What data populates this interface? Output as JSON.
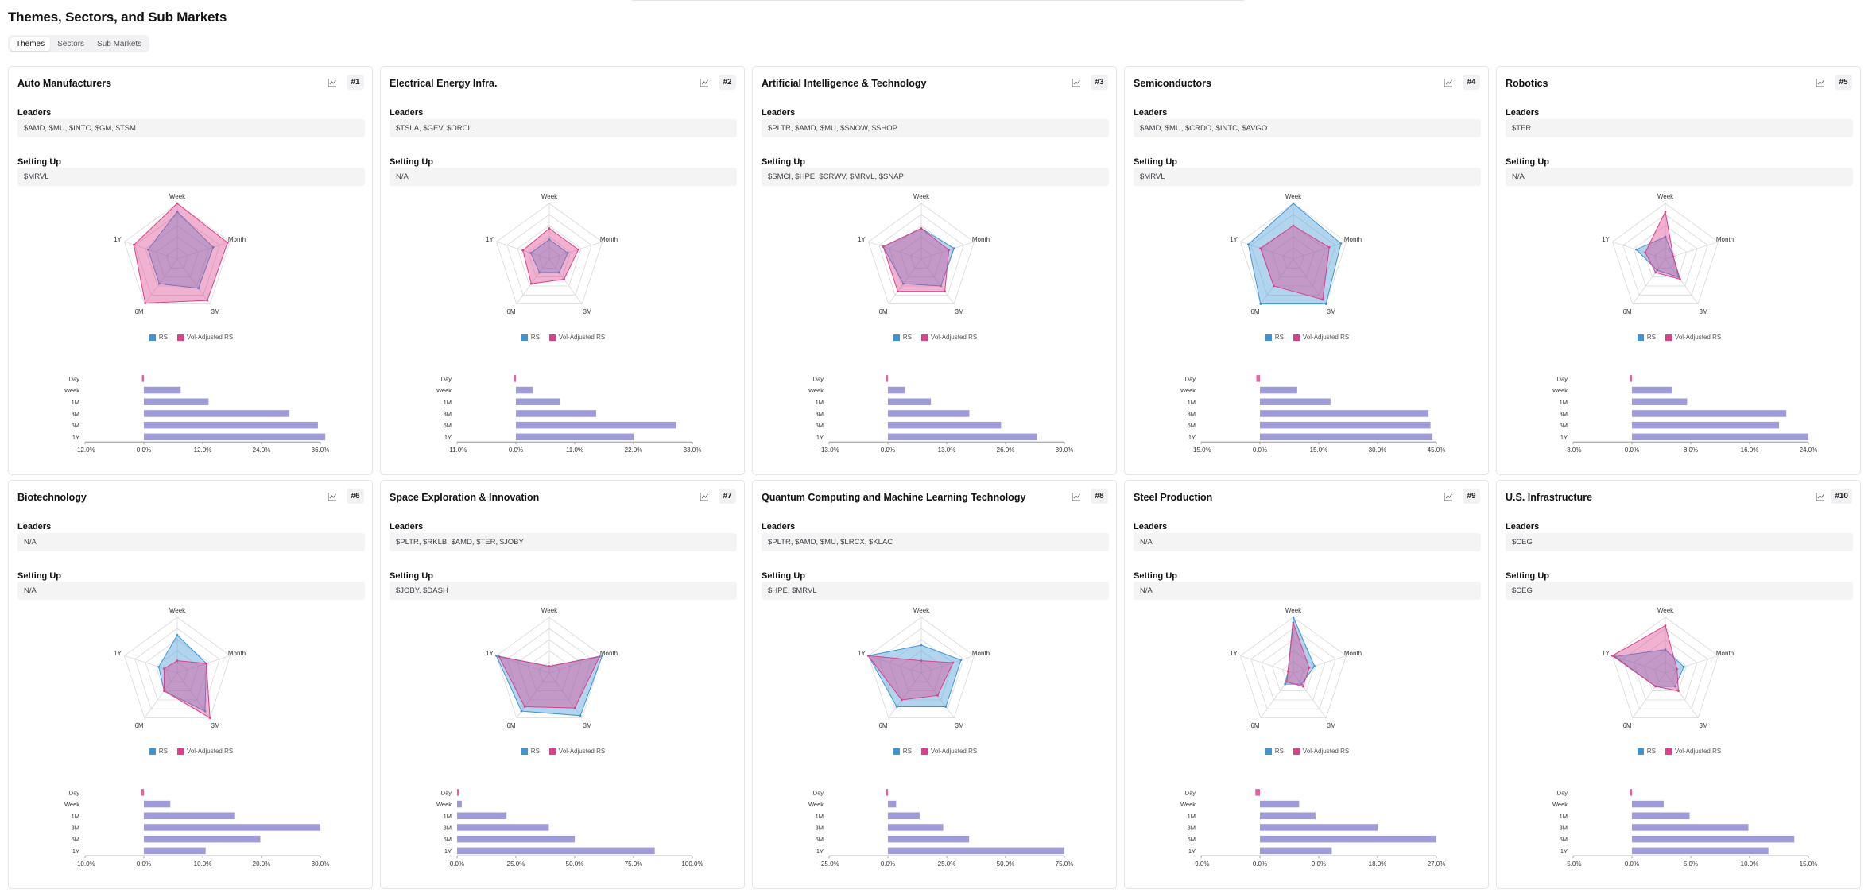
{
  "page": {
    "title": "Themes, Sectors, and Sub Markets"
  },
  "tabs": [
    {
      "label": "Themes",
      "active": true
    },
    {
      "label": "Sectors",
      "active": false
    },
    {
      "label": "Sub Markets",
      "active": false
    }
  ],
  "labels": {
    "leaders": "Leaders",
    "setting_up": "Setting Up"
  },
  "legend": {
    "rs": "RS",
    "vol_adjusted": "Vol-Adjusted RS"
  },
  "colors": {
    "rs": "#3e95d6",
    "vol": "#dd3f8b",
    "bar": "#9e9bd6",
    "day_bar": "#e8609f"
  },
  "chart_data": [
    {
      "type": "radar+bar",
      "title": "Auto Manufacturers",
      "rank": "#1",
      "leaders": "$AMD, $MU, $INTC, $GM, $TSM",
      "setting_up": "$MRVL",
      "radar_axes": [
        "Week",
        "Month",
        "3M",
        "6M",
        "1Y"
      ],
      "rs": [
        0.85,
        0.68,
        0.65,
        0.55,
        0.55
      ],
      "vol_adjusted_rs": [
        1.0,
        0.95,
        0.92,
        0.98,
        0.82
      ],
      "bar_categories": [
        "Day",
        "Week",
        "1M",
        "3M",
        "6M",
        "1Y"
      ],
      "bar_values": [
        -0.3,
        7.5,
        13.2,
        29.7,
        35.5,
        37.0
      ],
      "xticks": [
        -12,
        0,
        12,
        24,
        36
      ],
      "tick_labels": [
        "-12.0%",
        "0.0%",
        "12.0%",
        "24.0%",
        "36.0%"
      ]
    },
    {
      "type": "radar+bar",
      "title": "Electrical Energy Infra.",
      "rank": "#2",
      "leaders": "$TSLA, $GEV, $ORCL",
      "setting_up": "N/A",
      "radar_axes": [
        "Week",
        "Month",
        "3M",
        "6M",
        "1Y"
      ],
      "rs": [
        0.35,
        0.35,
        0.3,
        0.3,
        0.35
      ],
      "vol_adjusted_rs": [
        0.55,
        0.55,
        0.45,
        0.55,
        0.5
      ],
      "bar_categories": [
        "Day",
        "Week",
        "1M",
        "3M",
        "6M",
        "1Y"
      ],
      "bar_values": [
        -0.3,
        3.2,
        8.2,
        15.0,
        30.0,
        22.0
      ],
      "xticks": [
        -11,
        0,
        11,
        22,
        33
      ],
      "tick_labels": [
        "-11.0%",
        "0.0%",
        "11.0%",
        "22.0%",
        "33.0%"
      ]
    },
    {
      "type": "radar+bar",
      "title": "Artificial Intelligence & Technology",
      "rank": "#3",
      "leaders": "$PLTR, $AMD, $MU, $SNOW, $SHOP",
      "setting_up": "$SMCI, $HPE, $CRWV, $MRVL, $SNAP",
      "radar_axes": [
        "Week",
        "Month",
        "3M",
        "6M",
        "1Y"
      ],
      "rs": [
        0.55,
        0.62,
        0.6,
        0.55,
        0.72
      ],
      "vol_adjusted_rs": [
        0.55,
        0.52,
        0.72,
        0.72,
        0.72
      ],
      "bar_categories": [
        "Day",
        "Week",
        "1M",
        "3M",
        "6M",
        "1Y"
      ],
      "bar_values": [
        -0.4,
        3.8,
        9.5,
        18.0,
        25.0,
        33.0
      ],
      "xticks": [
        -13,
        0,
        13,
        26,
        39
      ],
      "tick_labels": [
        "-13.0%",
        "0.0%",
        "13.0%",
        "26.0%",
        "39.0%"
      ]
    },
    {
      "type": "radar+bar",
      "title": "Semiconductors",
      "rank": "#4",
      "leaders": "$AMD, $MU, $CRDO, $INTC, $AVGO",
      "setting_up": "$MRVL",
      "radar_axes": [
        "Week",
        "Month",
        "3M",
        "6M",
        "1Y"
      ],
      "rs": [
        1.0,
        0.9,
        1.0,
        1.0,
        0.85
      ],
      "vol_adjusted_rs": [
        0.6,
        0.68,
        0.9,
        0.6,
        0.62
      ],
      "bar_categories": [
        "Day",
        "Week",
        "1M",
        "3M",
        "6M",
        "1Y"
      ],
      "bar_values": [
        -0.9,
        9.5,
        18.0,
        43.0,
        43.5,
        44.0
      ],
      "xticks": [
        -15,
        0,
        15,
        30,
        45
      ],
      "tick_labels": [
        "-15.0%",
        "0.0%",
        "15.0%",
        "30.0%",
        "45.0%"
      ]
    },
    {
      "type": "radar+bar",
      "title": "Robotics",
      "rank": "#5",
      "leaders": "$TER",
      "setting_up": "N/A",
      "radar_axes": [
        "Week",
        "Month",
        "3M",
        "6M",
        "1Y"
      ],
      "rs": [
        0.4,
        0.15,
        0.4,
        0.25,
        0.55
      ],
      "vol_adjusted_rs": [
        0.85,
        0.15,
        0.45,
        0.3,
        0.38
      ],
      "bar_categories": [
        "Day",
        "Week",
        "1M",
        "3M",
        "6M",
        "1Y"
      ],
      "bar_values": [
        -0.05,
        5.5,
        7.5,
        21.0,
        20.0,
        24.0
      ],
      "xticks": [
        -8,
        0,
        8,
        16,
        24
      ],
      "tick_labels": [
        "-8.0%",
        "0.0%",
        "8.0%",
        "16.0%",
        "24.0%"
      ]
    },
    {
      "type": "radar+bar",
      "title": "Biotechnology",
      "rank": "#6",
      "leaders": "N/A",
      "setting_up": "N/A",
      "radar_axes": [
        "Week",
        "Month",
        "3M",
        "6M",
        "1Y"
      ],
      "rs": [
        0.68,
        0.55,
        0.85,
        0.4,
        0.35
      ],
      "vol_adjusted_rs": [
        0.22,
        0.55,
        1.0,
        0.4,
        0.25
      ],
      "bar_categories": [
        "Day",
        "Week",
        "1M",
        "3M",
        "6M",
        "1Y"
      ],
      "bar_values": [
        -0.5,
        4.5,
        15.5,
        30.0,
        19.8,
        10.5
      ],
      "xticks": [
        -10,
        0,
        10,
        20,
        30
      ],
      "tick_labels": [
        "-10.0%",
        "0.0%",
        "10.0%",
        "20.0%",
        "30.0%"
      ]
    },
    {
      "type": "radar+bar",
      "title": "Space Exploration & Innovation",
      "rank": "#7",
      "leaders": "$PLTR, $RKLB, $AMD, $TER, $JOBY",
      "setting_up": "$JOBY, $DASH",
      "radar_axes": [
        "Week",
        "Month",
        "3M",
        "6M",
        "1Y"
      ],
      "rs": [
        0.12,
        1.0,
        0.95,
        0.85,
        1.0
      ],
      "vol_adjusted_rs": [
        0.12,
        0.95,
        0.78,
        0.75,
        0.95
      ],
      "bar_categories": [
        "Day",
        "Week",
        "1M",
        "3M",
        "6M",
        "1Y"
      ],
      "bar_values": [
        0.0,
        2.0,
        21.0,
        39.0,
        50.0,
        84.0
      ],
      "xticks": [
        0,
        25,
        50,
        75,
        100
      ],
      "tick_labels": [
        "0.0%",
        "25.0%",
        "50.0%",
        "75.0%",
        "100.0%"
      ]
    },
    {
      "type": "radar+bar",
      "title": "Quantum Computing and Machine Learning Technology",
      "rank": "#8",
      "leaders": "$PLTR, $AMD, $MU, $LRCX, $KLAC",
      "setting_up": "$HPE, $MRVL",
      "radar_axes": [
        "Week",
        "Month",
        "3M",
        "6M",
        "1Y"
      ],
      "rs": [
        0.5,
        0.75,
        0.75,
        0.75,
        1.0
      ],
      "vol_adjusted_rs": [
        0.22,
        0.6,
        0.5,
        0.6,
        1.0
      ],
      "bar_categories": [
        "Day",
        "Week",
        "1M",
        "3M",
        "6M",
        "1Y"
      ],
      "bar_values": [
        -0.3,
        3.5,
        13.5,
        23.5,
        34.5,
        75.0
      ],
      "xticks": [
        -25,
        0,
        25,
        50,
        75
      ],
      "tick_labels": [
        "-25.0%",
        "0.0%",
        "25.0%",
        "50.0%",
        "75.0%"
      ]
    },
    {
      "type": "radar+bar",
      "title": "Steel Production",
      "rank": "#9",
      "leaders": "N/A",
      "setting_up": "N/A",
      "radar_axes": [
        "Week",
        "Month",
        "3M",
        "6M",
        "1Y"
      ],
      "rs": [
        1.0,
        0.4,
        0.25,
        0.25,
        0.1
      ],
      "vol_adjusted_rs": [
        0.9,
        0.3,
        0.3,
        0.2,
        0.1
      ],
      "bar_categories": [
        "Day",
        "Week",
        "1M",
        "3M",
        "6M",
        "1Y"
      ],
      "bar_values": [
        -0.7,
        6.0,
        8.5,
        18.0,
        27.0,
        11.0
      ],
      "xticks": [
        -9,
        0,
        9,
        18,
        27
      ],
      "tick_labels": [
        "-9.0%",
        "0.0%",
        "9.0%",
        "18.0%",
        "27.0%"
      ]
    },
    {
      "type": "radar+bar",
      "title": "U.S. Infrastructure",
      "rank": "#10",
      "leaders": "$CEG",
      "setting_up": "$CEG",
      "radar_axes": [
        "Week",
        "Month",
        "3M",
        "6M",
        "1Y"
      ],
      "rs": [
        0.42,
        0.35,
        0.3,
        0.3,
        0.95
      ],
      "vol_adjusted_rs": [
        0.85,
        0.22,
        0.4,
        0.3,
        1.0
      ],
      "bar_categories": [
        "Day",
        "Week",
        "1M",
        "3M",
        "6M",
        "1Y"
      ],
      "bar_values": [
        -0.1,
        2.7,
        4.9,
        9.9,
        13.8,
        11.6
      ],
      "xticks": [
        -5,
        0,
        5,
        10,
        15
      ],
      "tick_labels": [
        "-5.0%",
        "0.0%",
        "5.0%",
        "10.0%",
        "15.0%"
      ]
    }
  ]
}
